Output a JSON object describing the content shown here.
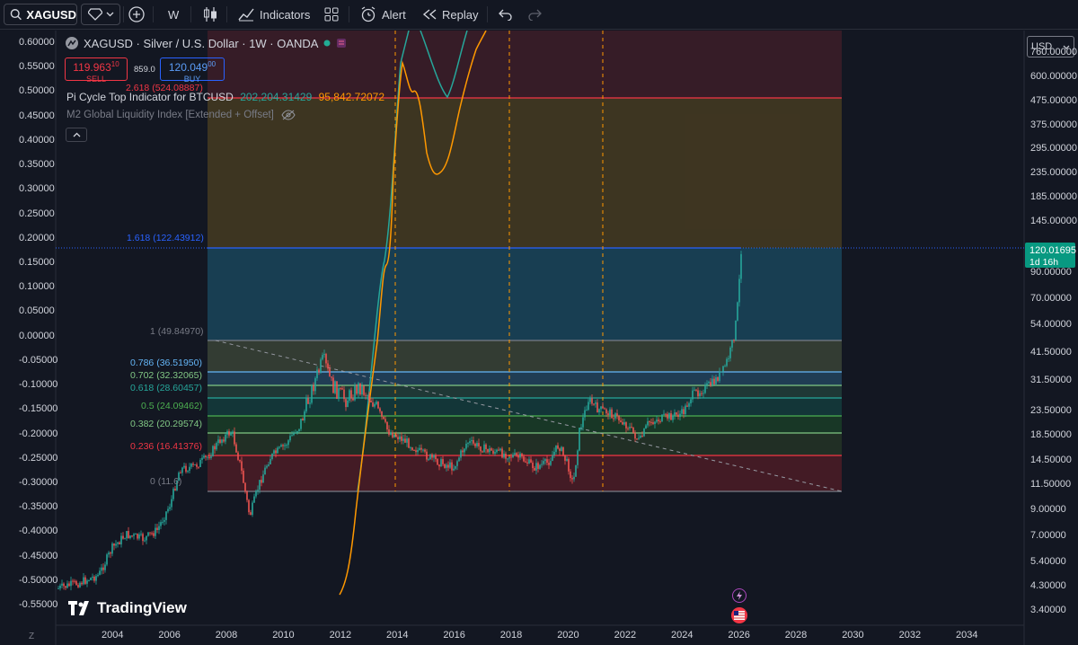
{
  "toolbar": {
    "symbol": "XAGUSD",
    "interval": "W",
    "indicators_label": "Indicators",
    "alert_label": "Alert",
    "replay_label": "Replay"
  },
  "legend": {
    "title": "XAGUSD · Silver / U.S. Dollar · 1W · OANDA",
    "sell_price": "119.963",
    "sell_price_sup": "10",
    "sell_label": "SELL",
    "spread": "859.0",
    "buy_price": "120.049",
    "buy_price_sup": "00",
    "buy_label": "BUY",
    "fib_top_label": "2.618 (524.08887)",
    "indicator1_name": "Pi Cycle Top Indicator for BTCUSD",
    "indicator1_v1": "202,204.31429",
    "indicator1_v2": "95,842.72072",
    "indicator2_name": "M2 Global Liquidity Index [Extended + Offset]"
  },
  "currency": "USD",
  "price_tag": {
    "value": "120.01695",
    "countdown": "1d 16h"
  },
  "left_axis": [
    "0.60000",
    "0.55000",
    "0.50000",
    "0.45000",
    "0.40000",
    "0.35000",
    "0.30000",
    "0.25000",
    "0.20000",
    "0.15000",
    "0.10000",
    "0.05000",
    "0.00000",
    "-0.05000",
    "-0.10000",
    "-0.15000",
    "-0.20000",
    "-0.25000",
    "-0.30000",
    "-0.35000",
    "-0.40000",
    "-0.45000",
    "-0.50000",
    "-0.55000"
  ],
  "right_axis": [
    "760.00000",
    "600.00000",
    "475.00000",
    "375.00000",
    "295.00000",
    "235.00000",
    "185.00000",
    "145.00000",
    "90.00000",
    "70.00000",
    "54.00000",
    "41.50000",
    "31.50000",
    "23.50000",
    "18.50000",
    "14.50000",
    "11.50000",
    "9.00000",
    "7.00000",
    "5.40000",
    "4.30000",
    "3.40000"
  ],
  "bottom_axis": [
    "2004",
    "2006",
    "2008",
    "2010",
    "2012",
    "2014",
    "2016",
    "2018",
    "2020",
    "2022",
    "2024",
    "2026",
    "2028",
    "2030",
    "2032",
    "2034"
  ],
  "fib_levels": [
    {
      "label": "2.618 (524.08887)",
      "color": "#f23645"
    },
    {
      "label": "1.618 (122.43912)",
      "color": "#2962ff"
    },
    {
      "label": "1 (49.84970)",
      "color": "#787b86"
    },
    {
      "label": "0.786 (36.51950)",
      "color": "#64b5f6"
    },
    {
      "label": "0.702 (32.32065)",
      "color": "#81c784"
    },
    {
      "label": "0.618 (28.60457)",
      "color": "#26a69a"
    },
    {
      "label": "0.5 (24.09462)",
      "color": "#4caf50"
    },
    {
      "label": "0.382 (20.29574)",
      "color": "#81c784"
    },
    {
      "label": "0.236 (16.41376)",
      "color": "#f23645"
    },
    {
      "label": "0 (11.6)",
      "color": "#787b86"
    }
  ],
  "branding": "TradingView",
  "axis_corner": "Z"
}
